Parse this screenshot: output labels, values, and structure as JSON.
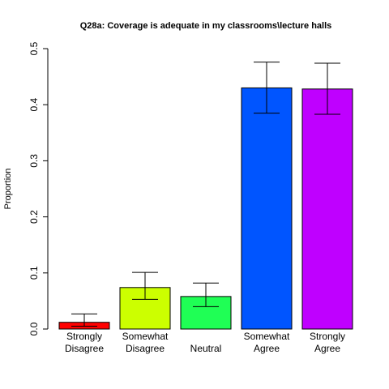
{
  "chart_data": {
    "type": "bar",
    "title": "Q28a: Coverage is adequate in my classrooms\\lecture halls",
    "xlabel": "",
    "ylabel": "Proportion",
    "ylim": [
      0,
      0.5
    ],
    "yticks": [
      0.0,
      0.1,
      0.2,
      0.3,
      0.4,
      0.5
    ],
    "ytick_labels": [
      "0.0",
      "0.1",
      "0.2",
      "0.3",
      "0.4",
      "0.5"
    ],
    "categories": [
      [
        "Strongly",
        "Disagree"
      ],
      [
        "Somewhat",
        "Disagree"
      ],
      [
        "Neutral"
      ],
      [
        "Somewhat",
        "Agree"
      ],
      [
        "Strongly",
        "Agree"
      ]
    ],
    "values": [
      0.012,
      0.074,
      0.058,
      0.43,
      0.428
    ],
    "error_low": [
      0.005,
      0.053,
      0.04,
      0.385,
      0.383
    ],
    "error_high": [
      0.027,
      0.101,
      0.082,
      0.476,
      0.474
    ],
    "colors": [
      "#FF0000",
      "#CCFF00",
      "#1FFF55",
      "#0055FF",
      "#BF00FF"
    ],
    "grid": false,
    "legend": "none"
  }
}
